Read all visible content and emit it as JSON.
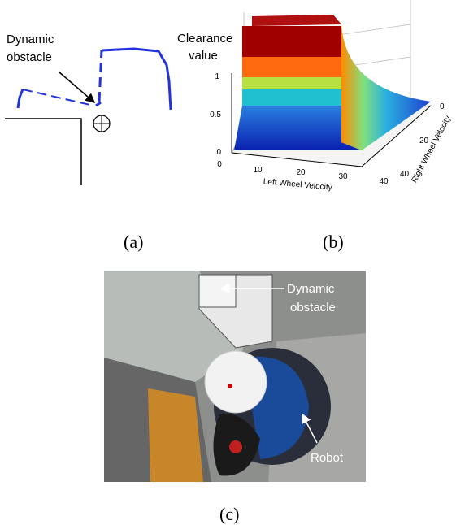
{
  "panel_a": {
    "annotation": [
      "Dynamic",
      "obstacle"
    ],
    "caption": "(a)"
  },
  "panel_b": {
    "z_label": [
      "Clearance",
      "value"
    ],
    "z_ticks": [
      1,
      0.5,
      0
    ],
    "x_label": "Left Wheel Velocity",
    "x_ticks": [
      0,
      10,
      20,
      30,
      40
    ],
    "y_label": "Right Wheel Velocity",
    "y_ticks": [
      0,
      20,
      40
    ],
    "caption": "(b)"
  },
  "panel_c": {
    "annotation": [
      "Dynamic",
      "obstacle"
    ],
    "robot_label": "Robot",
    "caption": "(c)"
  }
}
